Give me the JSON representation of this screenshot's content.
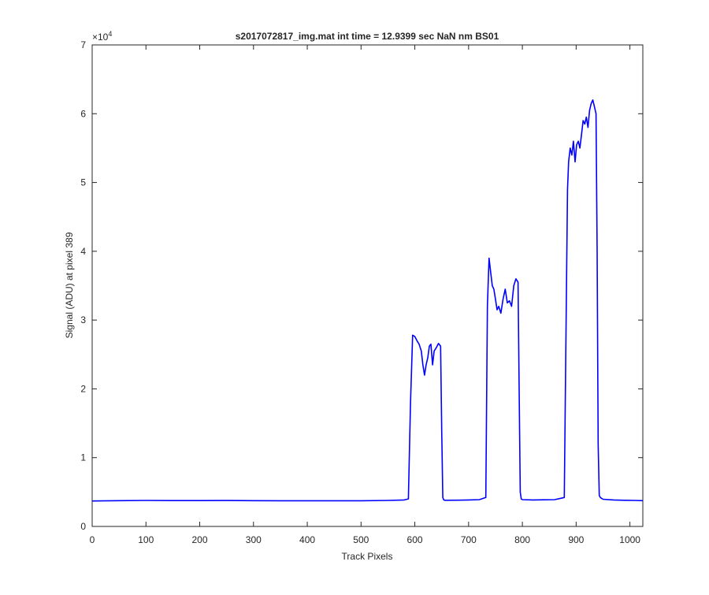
{
  "chart_data": {
    "type": "line",
    "title": "s2017072817_img.mat int time = 12.9399 sec  NaN nm BS01",
    "xlabel": "Track Pixels",
    "ylabel": "Signal (ADU) at pixel 389",
    "y_exponent_label": "×10",
    "y_exponent_power": "4",
    "xlim": [
      0,
      1024
    ],
    "ylim": [
      0,
      70000
    ],
    "x_ticks": [
      0,
      100,
      200,
      300,
      400,
      500,
      600,
      700,
      800,
      900,
      1000
    ],
    "x_tick_labels": [
      "0",
      "100",
      "200",
      "300",
      "400",
      "500",
      "600",
      "700",
      "800",
      "900",
      "1000"
    ],
    "y_ticks": [
      0,
      10000,
      20000,
      30000,
      40000,
      50000,
      60000,
      70000
    ],
    "y_tick_labels": [
      "0",
      "1",
      "2",
      "3",
      "4",
      "5",
      "6",
      "7"
    ],
    "grid": false,
    "series": [
      {
        "color": "#0000ff",
        "x": [
          0,
          50,
          100,
          150,
          200,
          250,
          300,
          350,
          400,
          450,
          500,
          550,
          580,
          588,
          592,
          596,
          600,
          604,
          608,
          612,
          615,
          618,
          621,
          624,
          627,
          630,
          633,
          636,
          640,
          644,
          648,
          650,
          652,
          654,
          656,
          680,
          700,
          720,
          732,
          735,
          738,
          741,
          744,
          747,
          750,
          753,
          756,
          760,
          764,
          768,
          772,
          776,
          780,
          784,
          788,
          792,
          794,
          796,
          798,
          800,
          820,
          840,
          860,
          878,
          882,
          884,
          886,
          889,
          892,
          895,
          898,
          901,
          904,
          907,
          910,
          913,
          916,
          919,
          922,
          925,
          928,
          931,
          934,
          937,
          939,
          941,
          943,
          945,
          947,
          950,
          970,
          990,
          1010,
          1024
        ],
        "y": [
          3700,
          3750,
          3780,
          3760,
          3760,
          3770,
          3750,
          3730,
          3740,
          3730,
          3740,
          3780,
          3850,
          4000,
          18000,
          27800,
          27600,
          27000,
          26500,
          25500,
          23500,
          22000,
          23500,
          24500,
          26200,
          26500,
          23500,
          25500,
          26000,
          26600,
          26200,
          14000,
          4200,
          3850,
          3800,
          3820,
          3850,
          3900,
          4200,
          32000,
          39000,
          37000,
          35000,
          34500,
          33000,
          31500,
          32000,
          31000,
          33000,
          34500,
          32500,
          32800,
          32000,
          35000,
          36000,
          35500,
          20000,
          5000,
          4000,
          3900,
          3850,
          3870,
          3900,
          4200,
          35000,
          49000,
          53000,
          55000,
          54000,
          56000,
          53000,
          55500,
          56000,
          55000,
          57000,
          59000,
          58500,
          59500,
          58000,
          60500,
          61500,
          62000,
          61000,
          60000,
          40000,
          12000,
          4500,
          4200,
          4100,
          3950,
          3850,
          3800,
          3780,
          3750
        ]
      }
    ]
  }
}
